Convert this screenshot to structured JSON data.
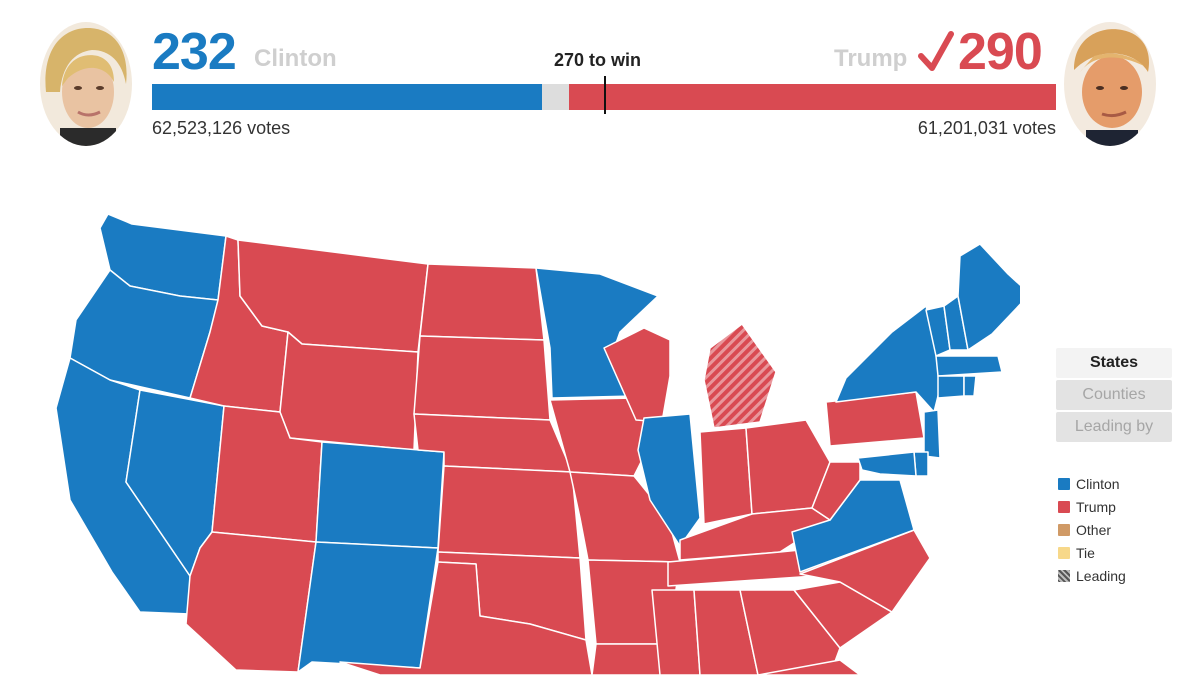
{
  "header": {
    "clinton": {
      "electoral_votes": "232",
      "name": "Clinton",
      "popular_votes": "62,523,126 votes",
      "color": "#1a7bc2"
    },
    "trump": {
      "electoral_votes": "290",
      "name": "Trump",
      "popular_votes": "61,201,031 votes",
      "color": "#d94a52",
      "checkmark": "✓"
    },
    "threshold_label": "270 to win",
    "bar": {
      "total": 538,
      "clinton": 232,
      "trump": 290,
      "threshold": 270,
      "undecided_color": "#dddddd"
    }
  },
  "view_toggle": {
    "buttons": [
      {
        "label": "States",
        "active": true
      },
      {
        "label": "Counties",
        "active": false
      },
      {
        "label": "Leading by",
        "active": false
      }
    ]
  },
  "legend": {
    "items": [
      {
        "label": "Clinton",
        "color": "#1a7bc2"
      },
      {
        "label": "Trump",
        "color": "#d94a52"
      },
      {
        "label": "Other",
        "color": "#d09a66"
      },
      {
        "label": "Tie",
        "color": "#f7d88a"
      },
      {
        "label": "Leading",
        "color": "#555555"
      }
    ]
  },
  "map": {
    "colors": {
      "clinton": "#1a7bc2",
      "trump": "#d94a52",
      "border": "#ffffff"
    },
    "states": [
      {
        "abbr": "WA",
        "winner": "clinton"
      },
      {
        "abbr": "OR",
        "winner": "clinton"
      },
      {
        "abbr": "CA",
        "winner": "clinton"
      },
      {
        "abbr": "NV",
        "winner": "clinton"
      },
      {
        "abbr": "ID",
        "winner": "trump"
      },
      {
        "abbr": "MT",
        "winner": "trump"
      },
      {
        "abbr": "WY",
        "winner": "trump"
      },
      {
        "abbr": "UT",
        "winner": "trump"
      },
      {
        "abbr": "AZ",
        "winner": "trump"
      },
      {
        "abbr": "CO",
        "winner": "clinton"
      },
      {
        "abbr": "NM",
        "winner": "clinton"
      },
      {
        "abbr": "ND",
        "winner": "trump"
      },
      {
        "abbr": "SD",
        "winner": "trump"
      },
      {
        "abbr": "NE",
        "winner": "trump"
      },
      {
        "abbr": "KS",
        "winner": "trump"
      },
      {
        "abbr": "OK",
        "winner": "trump"
      },
      {
        "abbr": "TX",
        "winner": "trump"
      },
      {
        "abbr": "MN",
        "winner": "clinton"
      },
      {
        "abbr": "IA",
        "winner": "trump"
      },
      {
        "abbr": "MO",
        "winner": "trump"
      },
      {
        "abbr": "AR",
        "winner": "trump"
      },
      {
        "abbr": "LA",
        "winner": "trump"
      },
      {
        "abbr": "WI",
        "winner": "trump"
      },
      {
        "abbr": "IL",
        "winner": "clinton"
      },
      {
        "abbr": "MI",
        "winner": "trump",
        "leading": true
      },
      {
        "abbr": "IN",
        "winner": "trump"
      },
      {
        "abbr": "OH",
        "winner": "trump"
      },
      {
        "abbr": "KY",
        "winner": "trump"
      },
      {
        "abbr": "TN",
        "winner": "trump"
      },
      {
        "abbr": "MS",
        "winner": "trump"
      },
      {
        "abbr": "AL",
        "winner": "trump"
      },
      {
        "abbr": "GA",
        "winner": "trump"
      },
      {
        "abbr": "FL",
        "winner": "trump"
      },
      {
        "abbr": "SC",
        "winner": "trump"
      },
      {
        "abbr": "NC",
        "winner": "trump"
      },
      {
        "abbr": "VA",
        "winner": "clinton"
      },
      {
        "abbr": "WV",
        "winner": "trump"
      },
      {
        "abbr": "PA",
        "winner": "trump"
      },
      {
        "abbr": "NY",
        "winner": "clinton"
      },
      {
        "abbr": "VT",
        "winner": "clinton"
      },
      {
        "abbr": "NH",
        "winner": "clinton"
      },
      {
        "abbr": "ME",
        "winner": "clinton"
      },
      {
        "abbr": "MA",
        "winner": "clinton"
      },
      {
        "abbr": "CT",
        "winner": "clinton"
      },
      {
        "abbr": "RI",
        "winner": "clinton"
      },
      {
        "abbr": "NJ",
        "winner": "clinton"
      },
      {
        "abbr": "DE",
        "winner": "clinton"
      },
      {
        "abbr": "MD",
        "winner": "clinton"
      }
    ]
  }
}
